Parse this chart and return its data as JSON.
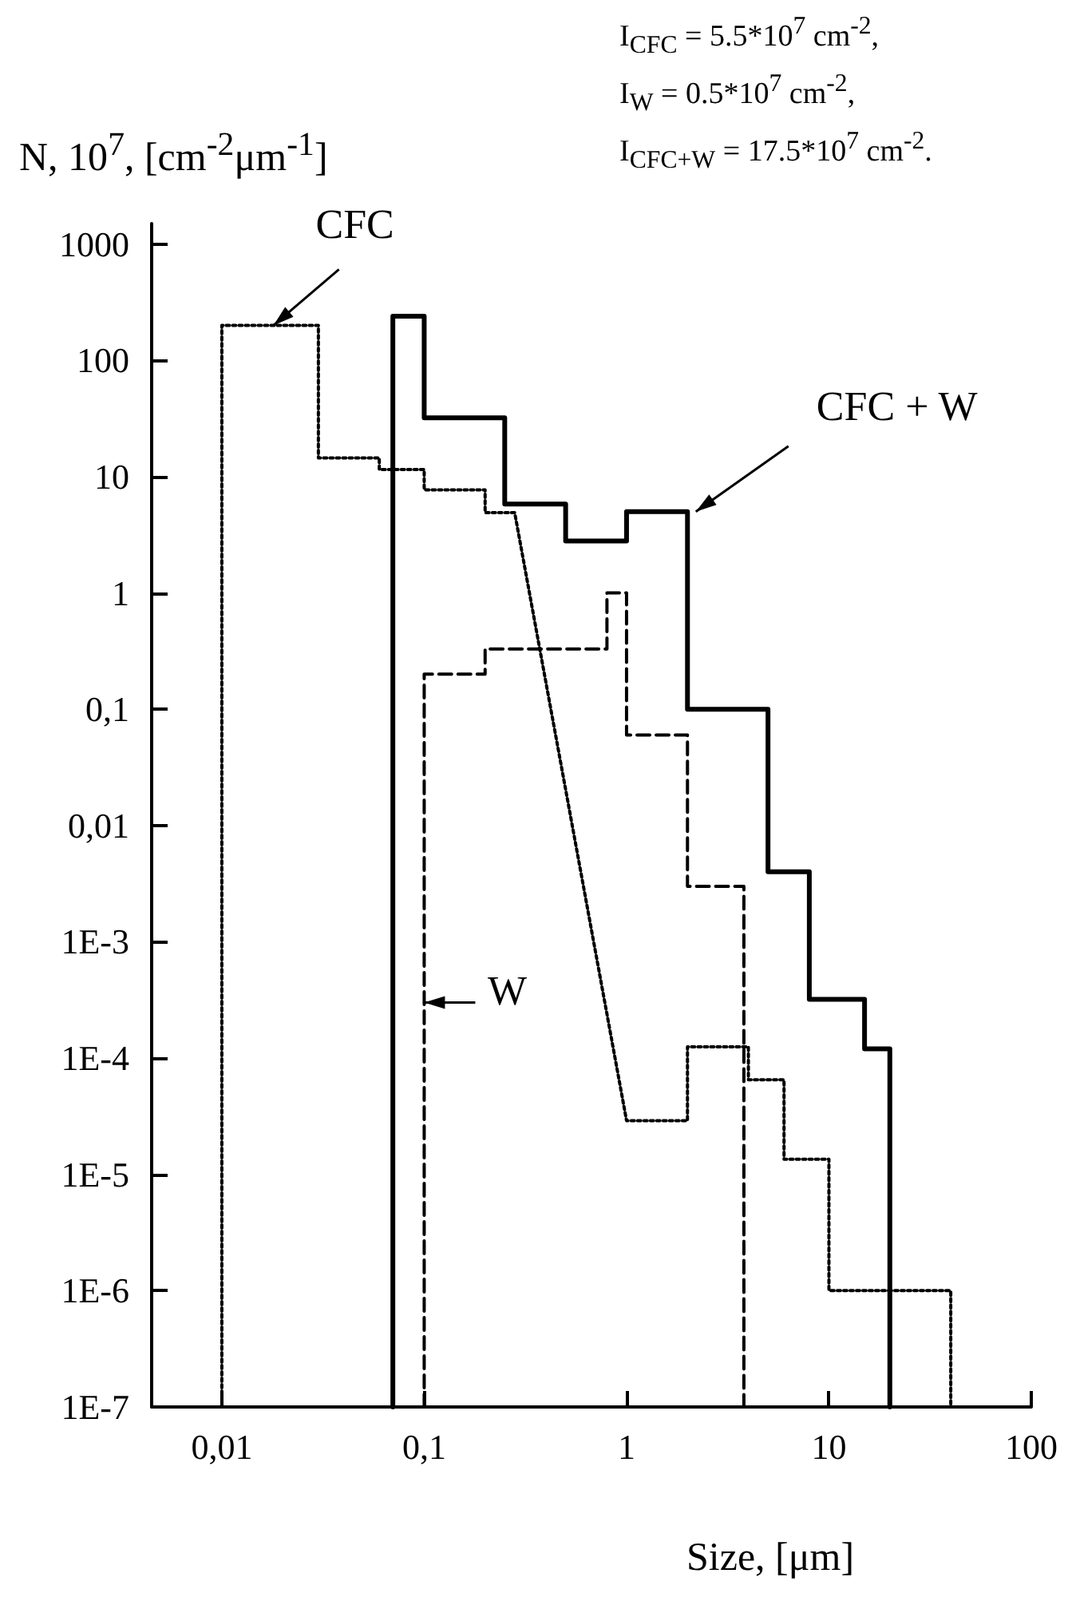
{
  "chart_data": {
    "type": "line",
    "xlabel": "Size, [μm]",
    "ylabel": "N, 10$^{7}$, [cm$^{-2}$μm$^{-1}$]",
    "log": "xy",
    "grid": false,
    "marker": "none",
    "xlim": [
      0.0045,
      100
    ],
    "xticks": [
      {
        "value": 0.01,
        "label": "0,01"
      },
      {
        "value": 0.1,
        "label": "0,1"
      },
      1,
      10,
      100
    ],
    "ylim": [
      1e-07,
      1500
    ],
    "yticks": [
      {
        "value": 1e-07,
        "label": "1E-7"
      },
      {
        "value": 1e-06,
        "label": "1E-6"
      },
      {
        "value": 1e-05,
        "label": "1E-5"
      },
      {
        "value": 0.0001,
        "label": "1E-4"
      },
      {
        "value": 0.001,
        "label": "1E-3"
      },
      {
        "value": 0.01,
        "label": "0,01"
      },
      {
        "value": 0.1,
        "label": "0,1"
      },
      1,
      10,
      100,
      1000
    ],
    "series": [
      {
        "color": "#000000",
        "line_style": "dotted",
        "x": [
          0.01,
          0.01,
          0.03,
          0.03,
          0.06,
          0.06,
          0.1,
          0.1,
          0.2,
          0.2,
          0.28,
          1,
          2,
          2,
          4,
          4,
          6,
          6,
          10,
          10,
          40,
          40
        ],
        "values": [
          1e-07,
          200,
          200,
          14.5,
          14.5,
          11.5,
          11.5,
          7.7,
          7.7,
          4.9,
          4.9,
          2.9e-05,
          2.9e-05,
          0.000125,
          0.000125,
          6.5e-05,
          6.5e-05,
          1.35e-05,
          1.35e-05,
          1e-06,
          1e-06,
          1e-07
        ]
      },
      {
        "color": "#000000",
        "line_style": "dashed",
        "x": [
          0.1,
          0.1,
          0.2,
          0.2,
          0.8,
          0.8,
          1,
          1,
          2,
          2,
          3.8,
          3.8
        ],
        "values": [
          1e-07,
          0.2,
          0.2,
          0.33,
          0.33,
          1,
          1,
          0.06,
          0.06,
          0.003,
          0.003,
          1e-07
        ]
      },
      {
        "color": "#000000",
        "line_style": "solid",
        "x": [
          0.07,
          0.07,
          0.1,
          0.1,
          0.25,
          0.25,
          0.5,
          0.5,
          1,
          1,
          2,
          2,
          5,
          5,
          8,
          8,
          15,
          15,
          20,
          20
        ],
        "values": [
          1e-07,
          240,
          240,
          32,
          32,
          5.8,
          5.8,
          2.8,
          2.8,
          5,
          5,
          0.1,
          0.1,
          0.004,
          0.004,
          0.00032,
          0.00032,
          0.00012,
          0.00012,
          1e-07
        ]
      }
    ],
    "annotations": [
      "I$_{CFC}$ = 5.5*10$^{7}$ cm$^{-2}$,",
      "I$_{W}$ = 0.5*10$^{7}$ cm$^{-2}$,",
      "I$_{CFC+W}$ = 17.5*10$^{7}$ cm$^{-2}$.",
      {
        "text": "CFC",
        "x": 0.018,
        "y": 200
      },
      {
        "text": "CFC + W",
        "x": 2.2,
        "y": 5
      },
      {
        "text": "W",
        "x": 0.1,
        "y": 0.0003
      }
    ]
  }
}
